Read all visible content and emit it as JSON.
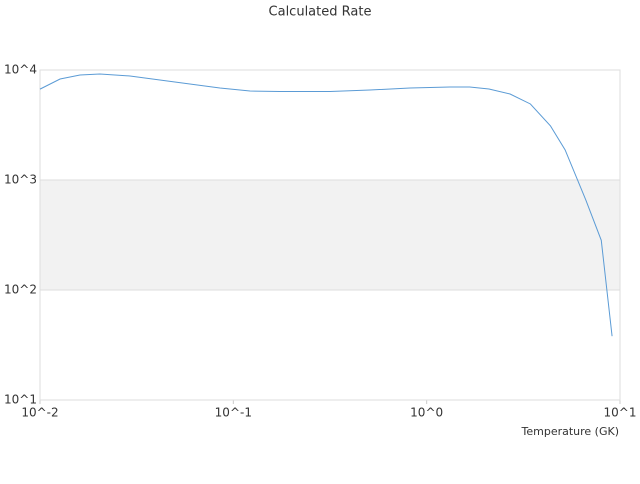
{
  "chart_data": {
    "type": "line",
    "title": "Calculated Rate",
    "x_label": "Temperature (GK)",
    "x": [
      0.01,
      0.0127,
      0.0161,
      0.0204,
      0.0292,
      0.0417,
      0.0596,
      0.0852,
      0.122,
      0.174,
      0.316,
      0.509,
      0.82,
      1.32,
      1.67,
      2.1,
      2.7,
      3.44,
      4.37,
      5.2,
      6.65,
      8.0,
      9.1
    ],
    "series": [
      {
        "color": "#5b9bd5",
        "values": [
          6700,
          8280,
          9000,
          9200,
          8820,
          8110,
          7460,
          6860,
          6440,
          6370,
          6370,
          6580,
          6860,
          7000,
          7000,
          6720,
          6050,
          4910,
          3100,
          1880,
          660,
          283,
          38
        ]
      }
    ],
    "xscale": "log",
    "yscale": "log",
    "xlim": [
      0.01,
      10
    ],
    "ylim": [
      10,
      10000
    ],
    "xticks": [
      {
        "value": 0.01,
        "label": "10^-2"
      },
      {
        "value": 0.1,
        "label": "10^-1"
      },
      {
        "value": 1,
        "label": "10^0"
      },
      {
        "value": 10,
        "label": "10^1"
      }
    ],
    "yticks": [
      {
        "value": 10,
        "label": "10^1"
      },
      {
        "value": 100,
        "label": "10^2"
      },
      {
        "value": 1000,
        "label": "10^3"
      },
      {
        "value": 10000,
        "label": "10^4"
      }
    ],
    "grid": true
  }
}
